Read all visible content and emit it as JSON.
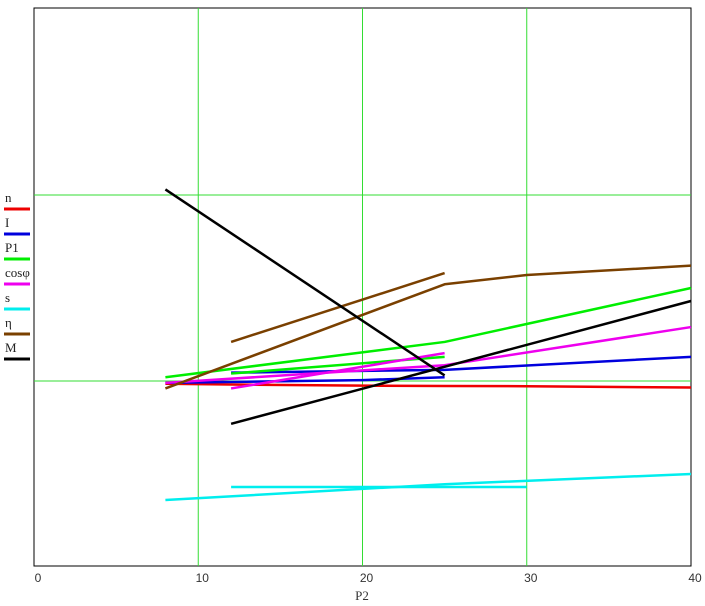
{
  "chart_data": {
    "type": "line",
    "title": "",
    "xlabel": "P2",
    "ylabel": "",
    "xlim": [
      0,
      40
    ],
    "xticks": [
      "0",
      "10",
      "20",
      "30",
      "40"
    ],
    "grid": true,
    "legend_position": "left",
    "series": [
      {
        "name": "n",
        "color": "#ee0000",
        "x": [
          8,
          12,
          20,
          25,
          30,
          40
        ],
        "y": [
          0.985,
          0.981,
          0.975,
          0.973,
          0.972,
          0.965
        ]
      },
      {
        "name": "I",
        "color": "#0000dd",
        "x": [
          12,
          25,
          40
        ],
        "y": [
          1.045,
          1.06,
          1.13
        ],
        "x2": [
          8,
          20,
          25
        ],
        "y2": [
          0.99,
          1.005,
          1.02
        ]
      },
      {
        "name": "P1",
        "color": "#00ee00",
        "x": [
          8,
          25,
          40
        ],
        "y": [
          1.02,
          1.21,
          1.5
        ],
        "x2": [
          12,
          25
        ],
        "y2": [
          1.04,
          1.13
        ]
      },
      {
        "name": "cosφ",
        "color": "#ee00ee",
        "x": [
          8,
          25,
          40
        ],
        "y": [
          0.99,
          1.085,
          1.29
        ],
        "x2": [
          12,
          25
        ],
        "y2": [
          0.96,
          1.15
        ]
      },
      {
        "name": "s",
        "color": "#00eeee",
        "x": [
          8,
          25,
          40
        ],
        "y": [
          0.36,
          0.445,
          0.5
        ],
        "x2": [
          12,
          30
        ],
        "y2": [
          0.43,
          0.43
        ]
      },
      {
        "name": "η",
        "color": "#7a4000",
        "x": [
          8,
          25,
          30,
          40
        ],
        "y": [
          0.96,
          1.52,
          1.57,
          1.62
        ],
        "x2": [
          12,
          25
        ],
        "y2": [
          1.21,
          1.58
        ]
      },
      {
        "name": "M",
        "color": "#000000",
        "x": [
          8,
          25
        ],
        "y": [
          2.03,
          1.03
        ],
        "x2": [
          12,
          40
        ],
        "y2": [
          0.77,
          1.43
        ]
      }
    ]
  }
}
